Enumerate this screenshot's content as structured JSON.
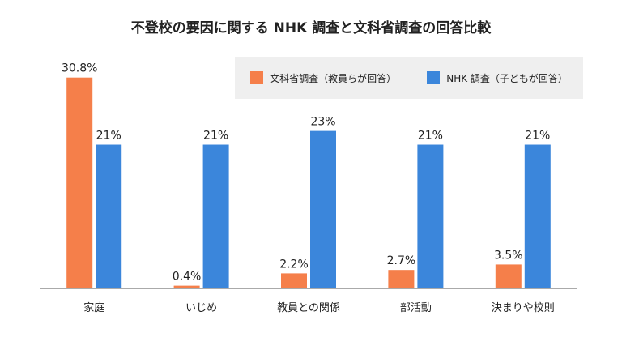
{
  "chart_data": {
    "type": "bar",
    "title": "不登校の要因に関する NHK 調査と文科省調査の回答比較",
    "xlabel": "",
    "ylabel": "",
    "categories": [
      "家庭",
      "いじめ",
      "教員との関係",
      "部活動",
      "決まりや校則"
    ],
    "series": [
      {
        "name": "文科省調査（教員らが回答）",
        "color": "#f57f4a",
        "values": [
          30.8,
          0.4,
          2.2,
          2.7,
          3.5
        ],
        "labels": [
          "30.8%",
          "0.4%",
          "2.2%",
          "2.7%",
          "3.5%"
        ]
      },
      {
        "name": "NHK 調査（子どもが回答）",
        "color": "#3b86db",
        "values": [
          21,
          21,
          23,
          21,
          21
        ],
        "labels": [
          "21%",
          "21%",
          "23%",
          "21%",
          "21%"
        ]
      }
    ],
    "ylim": [
      0,
      31
    ],
    "grid": false,
    "legend_position": "top-right"
  }
}
